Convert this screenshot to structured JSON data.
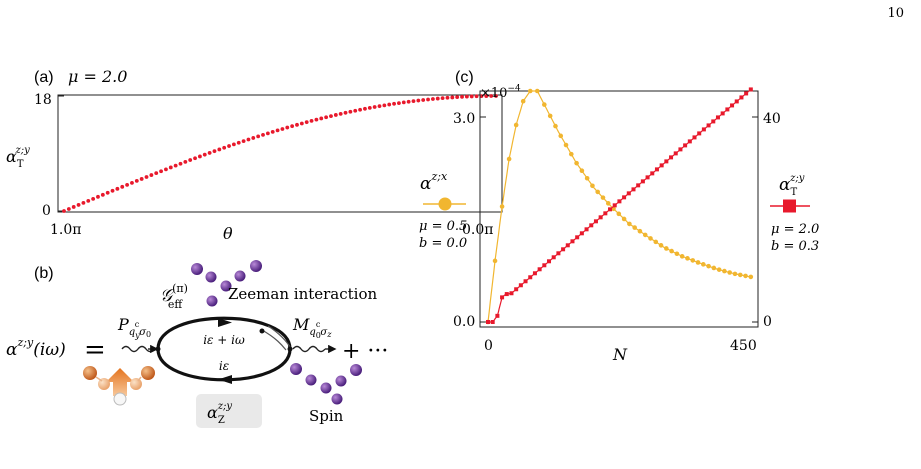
{
  "page": {
    "number": "10"
  },
  "panel_a": {
    "label": "(a)",
    "param": "μ = 2.0",
    "ylabel": "α",
    "ylabel_sub": "T",
    "ylabel_sup": "z;y",
    "xlabel": "θ",
    "ytick_top": "18",
    "ytick_bottom": "0",
    "xtick_left": "1.0π",
    "xtick_right": "0.0π"
  },
  "panel_b": {
    "label": "(b)",
    "lhs": "α",
    "lhs_sup": "z;y",
    "lhs_arg": "(iω)",
    "equals": "=",
    "g_label": "𝒢",
    "g_sup": "(π)",
    "g_sub": "eff",
    "zeeman": "Zeeman interaction",
    "upper_energy": "iε + iω",
    "lower_energy": "iε",
    "p_vertex": "P",
    "p_sub": "q",
    "p_subsub": "y",
    "p_subsup": "c",
    "p_sigma": "σ",
    "p_sigma_sub": "0",
    "m_vertex": "M",
    "m_sub": "q",
    "m_subsub": "0",
    "m_subsup": "c",
    "m_sigma": "σ",
    "m_sigma_sub": "z",
    "plus": "+ ···",
    "alpha_z": "α",
    "alpha_z_sub": "Z",
    "alpha_z_sup": "z;y",
    "spin": "Spin"
  },
  "panel_c": {
    "label": "(c)",
    "scale": "×10",
    "scale_exp": "−4",
    "left_ylabel": "α",
    "left_ylabel_sup": "z;x",
    "left_ytick_top": "3.0",
    "left_ytick_bottom": "0.0",
    "right_ylabel": "α",
    "right_ylabel_sub": "T",
    "right_ylabel_sup": "z;y",
    "right_ytick_top": "40",
    "right_ytick_bottom": "0",
    "xlabel": "N",
    "xtick_left": "0",
    "xtick_right": "450",
    "left_params": [
      "μ = 0.5",
      "b = 0.0"
    ],
    "right_params": [
      "μ = 2.0",
      "b = 0.3"
    ]
  },
  "colors": {
    "red": "#e8192c",
    "yellow": "#f1b630",
    "purple": "#5a2a8e",
    "orange": "#d9742a"
  },
  "chart_data": [
    {
      "type": "scatter",
      "panel": "(a)",
      "xlabel": "θ",
      "ylabel": "α_T^{z;y}",
      "x_range": [
        1.0,
        0.0
      ],
      "x_unit": "π",
      "ylim": [
        0,
        18
      ],
      "series": [
        {
          "color": "#e8192c",
          "x_start": 1.0,
          "x_end": 0.0,
          "y_start": 0,
          "y_end": 18,
          "points": 90
        }
      ]
    },
    {
      "type": "line",
      "panel": "(c)",
      "xlabel": "N",
      "xlim": [
        0,
        450
      ],
      "left_ylim": [
        0,
        3.4
      ],
      "right_ylim": [
        0,
        45
      ],
      "series": [
        {
          "color": "#f1b630",
          "x": [
            0,
            12,
            24,
            36,
            48,
            60,
            72,
            84,
            96,
            120,
            150,
            180,
            210,
            240,
            270,
            300,
            330,
            360,
            390,
            420,
            450
          ],
          "y": [
            0.0,
            0.9,
            1.7,
            2.4,
            2.9,
            3.25,
            3.4,
            3.4,
            3.2,
            2.8,
            2.35,
            1.98,
            1.7,
            1.45,
            1.27,
            1.1,
            0.97,
            0.87,
            0.78,
            0.71,
            0.66
          ]
        },
        {
          "color": "#e8192c",
          "x": [
            0,
            8,
            16,
            24,
            30,
            40,
            450
          ],
          "y": [
            0.0,
            0.0,
            1.2,
            4.8,
            5.4,
            5.6,
            45.5
          ]
        }
      ]
    }
  ]
}
